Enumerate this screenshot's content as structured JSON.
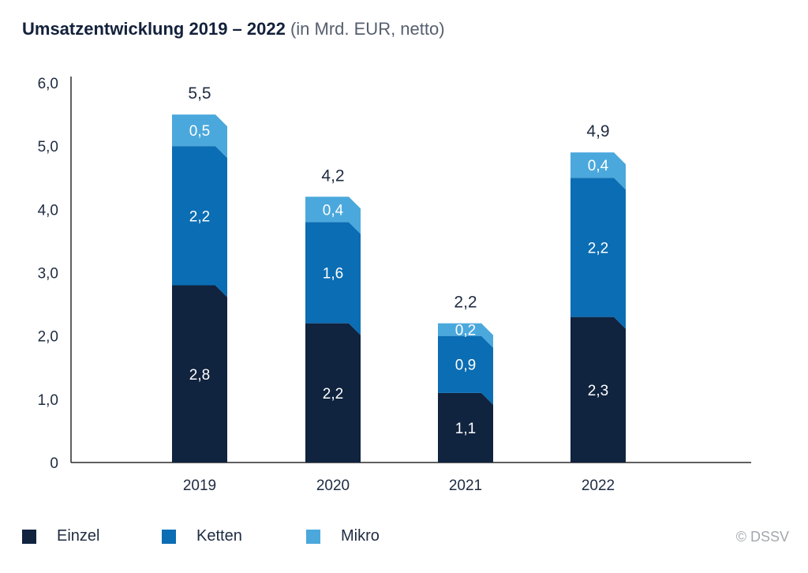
{
  "title": {
    "main": "Umsatzentwicklung 2019 – 2022",
    "sub": "(in Mrd. EUR, netto)"
  },
  "copyright": "© DSSV",
  "colors": {
    "Einzel": "#10233f",
    "Ketten": "#0b6db3",
    "Mikro": "#4ba8dc",
    "axis": "#2b2b2b"
  },
  "chart_data": {
    "type": "bar",
    "stacked": true,
    "categories": [
      "2019",
      "2020",
      "2021",
      "2022"
    ],
    "series": [
      {
        "name": "Einzel",
        "values": [
          2.8,
          2.2,
          1.1,
          2.3
        ],
        "labels": [
          "2,8",
          "2,2",
          "1,1",
          "2,3"
        ]
      },
      {
        "name": "Ketten",
        "values": [
          2.2,
          1.6,
          0.9,
          2.2
        ],
        "labels": [
          "2,2",
          "1,6",
          "0,9",
          "2,2"
        ]
      },
      {
        "name": "Mikro",
        "values": [
          0.5,
          0.4,
          0.2,
          0.4
        ],
        "labels": [
          "0,5",
          "0,4",
          "0,2",
          "0,4"
        ]
      }
    ],
    "totals": [
      5.5,
      4.2,
      2.2,
      4.9
    ],
    "total_labels": [
      "5,5",
      "4,2",
      "2,2",
      "4,9"
    ],
    "ylim": [
      0,
      6
    ],
    "yticks": [
      0,
      1,
      2,
      3,
      4,
      5,
      6
    ],
    "ytick_labels": [
      "0",
      "1,0",
      "2,0",
      "3,0",
      "4,0",
      "5,0",
      "6,0"
    ],
    "grid": false,
    "legend": "bottom-left"
  }
}
